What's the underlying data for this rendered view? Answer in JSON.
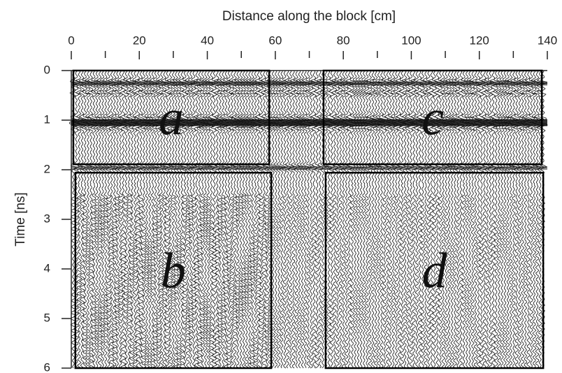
{
  "chart_data": {
    "type": "radargram",
    "x_label": "Distance along the block [cm]",
    "y_label": "Time [ns]",
    "xlim": [
      0,
      140
    ],
    "xticks": [
      0,
      20,
      40,
      60,
      80,
      100,
      120,
      140
    ],
    "xminorticks": [
      10,
      30,
      50,
      70,
      90,
      110,
      130
    ],
    "ylim": [
      0,
      6
    ],
    "yticks": [
      0,
      1,
      2,
      3,
      4,
      5,
      6
    ],
    "regions": [
      {
        "label": "a",
        "x": [
          0.6,
          58.2
        ],
        "y": [
          0,
          1.89
        ]
      },
      {
        "label": "b",
        "x": [
          1.2,
          58.8
        ],
        "y": [
          2.06,
          6
        ]
      },
      {
        "label": "c",
        "x": [
          74.2,
          138.4
        ],
        "y": [
          0,
          1.89
        ]
      },
      {
        "label": "d",
        "x": [
          74.8,
          138.8
        ],
        "y": [
          2.06,
          6
        ]
      }
    ]
  }
}
